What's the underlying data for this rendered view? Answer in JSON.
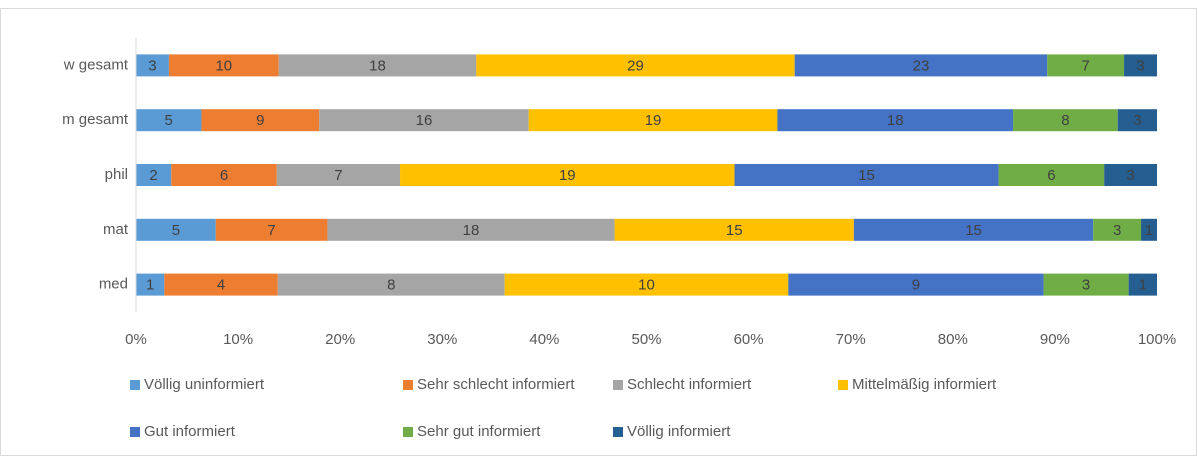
{
  "chart_data": {
    "type": "bar100h",
    "categories": [
      "w gesamt",
      "m gesamt",
      "phil",
      "mat",
      "med"
    ],
    "series": [
      {
        "name": "Völlig uninformiert",
        "color": "#5b9bd5",
        "values": [
          3,
          5,
          2,
          5,
          1
        ]
      },
      {
        "name": "Sehr schlecht informiert",
        "color": "#ed7d31",
        "values": [
          10,
          9,
          6,
          7,
          4
        ]
      },
      {
        "name": "Schlecht informiert",
        "color": "#a5a5a5",
        "values": [
          18,
          16,
          7,
          18,
          8
        ]
      },
      {
        "name": "Mittelmäßig informiert",
        "color": "#ffc000",
        "values": [
          29,
          19,
          19,
          15,
          10
        ]
      },
      {
        "name": "Gut informiert",
        "color": "#4472c4",
        "values": [
          23,
          18,
          15,
          15,
          9
        ]
      },
      {
        "name": "Sehr gut informiert",
        "color": "#70ad47",
        "values": [
          7,
          8,
          6,
          3,
          3
        ]
      },
      {
        "name": "Völlig informiert",
        "color": "#255e91",
        "values": [
          3,
          3,
          3,
          1,
          1
        ]
      }
    ],
    "xlim": [
      0,
      100
    ],
    "xticks": [
      {
        "value": 0,
        "label": "0%"
      },
      {
        "value": 10,
        "label": "10%"
      },
      {
        "value": 20,
        "label": "20%"
      },
      {
        "value": 30,
        "label": "30%"
      },
      {
        "value": 40,
        "label": "40%"
      },
      {
        "value": 50,
        "label": "50%"
      },
      {
        "value": 60,
        "label": "60%"
      },
      {
        "value": 70,
        "label": "70%"
      },
      {
        "value": 80,
        "label": "80%"
      },
      {
        "value": 90,
        "label": "90%"
      },
      {
        "value": 100,
        "label": "100%"
      }
    ]
  }
}
